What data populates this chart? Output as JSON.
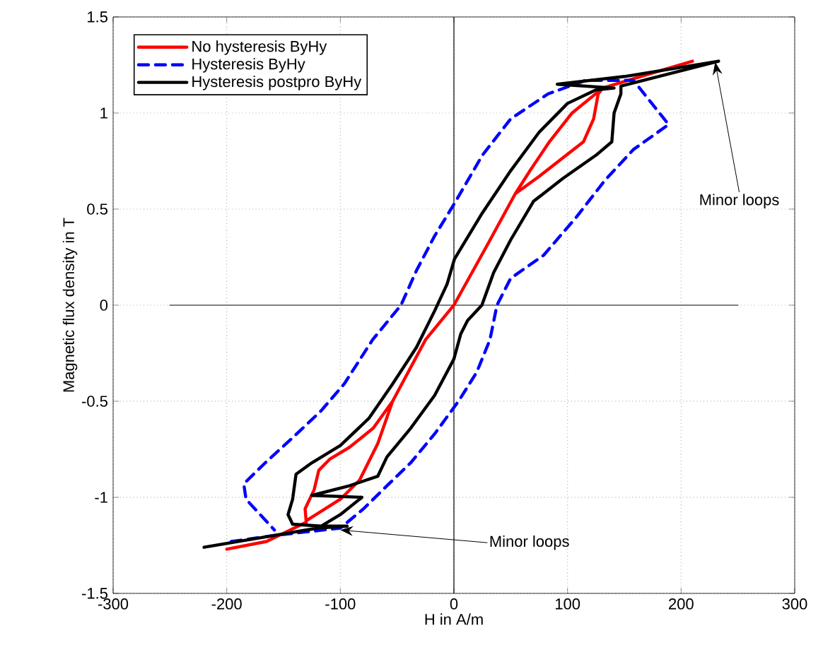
{
  "chart_data": {
    "type": "line",
    "xlabel": "H in A/m",
    "ylabel": "Magnetic flux density in T",
    "xlim": [
      -300,
      300
    ],
    "ylim": [
      -1.5,
      1.5
    ],
    "xticks": [
      -300,
      -200,
      -100,
      0,
      100,
      200,
      300
    ],
    "yticks": [
      -1.5,
      -1,
      -0.5,
      0,
      0.5,
      1,
      1.5
    ],
    "grid": true,
    "legend": "top left",
    "ref_lines": [
      {
        "axis": "x",
        "value": 0,
        "color": "#000000"
      }
    ],
    "annotations": [
      {
        "text": "Minor loops",
        "x": 230,
        "y": 1.265
      },
      {
        "text": "Minor loops",
        "x": -100,
        "y": -1.17
      }
    ],
    "series": [
      {
        "color": "#808080",
        "line_style": "solid",
        "x": [
          -250,
          250
        ],
        "values": [
          0,
          0
        ]
      },
      {
        "name": "No hysteresis ByHy",
        "color": "#ff0000",
        "line_style": "solid",
        "x": [
          -200,
          -165,
          -130,
          -131,
          -123,
          -119,
          -109,
          -92,
          -71,
          -54,
          -25,
          0,
          30,
          54,
          75,
          114,
          123,
          127,
          131,
          170,
          210,
          170,
          131,
          104,
          84,
          67,
          54,
          30,
          0,
          -25,
          -54,
          -67,
          -83,
          -100,
          -129.5
        ],
        "values": [
          -1.27,
          -1.23,
          -1.13,
          -1.06,
          -0.96,
          -0.86,
          -0.8,
          -0.74,
          -0.64,
          -0.5,
          -0.18,
          0,
          0.32,
          0.58,
          0.67,
          0.85,
          0.97,
          1.1,
          1.13,
          1.2,
          1.27,
          1.2,
          1.13,
          1.0,
          0.85,
          0.7,
          0.58,
          0.32,
          0,
          -0.18,
          -0.5,
          -0.72,
          -0.91,
          -1.01,
          -1.12
        ]
      },
      {
        "name": "Hysteresis ByHy",
        "color": "#0000ff",
        "line_style": "dashed",
        "x": [
          -196,
          -160,
          -130,
          -100,
          -79.6,
          -59,
          -38,
          -17,
          4,
          20,
          31.7,
          37.9,
          50,
          79,
          108,
          133,
          158,
          189,
          158,
          116,
          83,
          50,
          25,
          0.5,
          -17,
          -33,
          -46.6,
          -71.6,
          -96.6,
          -117,
          -142,
          -166,
          -185,
          -183,
          -158
        ],
        "values": [
          -1.23,
          -1.2,
          -1.18,
          -1.16,
          -1.06,
          -0.94,
          -0.82,
          -0.67,
          -0.5,
          -0.35,
          -0.18,
          0,
          0.14,
          0.26,
          0.46,
          0.65,
          0.81,
          0.94,
          1.17,
          1.17,
          1.1,
          0.97,
          0.78,
          0.53,
          0.36,
          0.18,
          0,
          -0.18,
          -0.41,
          -0.55,
          -0.69,
          -0.82,
          -0.93,
          -1.01,
          -1.17
        ]
      },
      {
        "name": "Hysteresis postpro ByHy",
        "color": "#000000",
        "line_style": "solid",
        "x": [
          -220,
          -170,
          -120,
          -94,
          -117,
          -142,
          -146,
          -142,
          -139,
          -125,
          -100,
          -75,
          -54,
          -33,
          -17,
          -6,
          0.5,
          25,
          50,
          75,
          100,
          125,
          141,
          91,
          150,
          233,
          147,
          147,
          141,
          139,
          125,
          96,
          70,
          50,
          35,
          24.6,
          12,
          6,
          0,
          -17,
          -38,
          -59,
          -67,
          -92,
          -125,
          -81,
          -100,
          -117
        ],
        "values": [
          -1.26,
          -1.21,
          -1.16,
          -1.15,
          -1.15,
          -1.14,
          -1.09,
          -1.01,
          -0.88,
          -0.82,
          -0.73,
          -0.59,
          -0.41,
          -0.22,
          -0.03,
          0.11,
          0.24,
          0.48,
          0.7,
          0.9,
          1.05,
          1.12,
          1.13,
          1.15,
          1.19,
          1.27,
          1.14,
          1.1,
          1.0,
          0.85,
          0.78,
          0.66,
          0.54,
          0.34,
          0.17,
          0,
          -0.08,
          -0.15,
          -0.28,
          -0.47,
          -0.64,
          -0.79,
          -0.89,
          -0.94,
          -0.99,
          -1.0,
          -1.09,
          -1.15
        ]
      }
    ]
  }
}
